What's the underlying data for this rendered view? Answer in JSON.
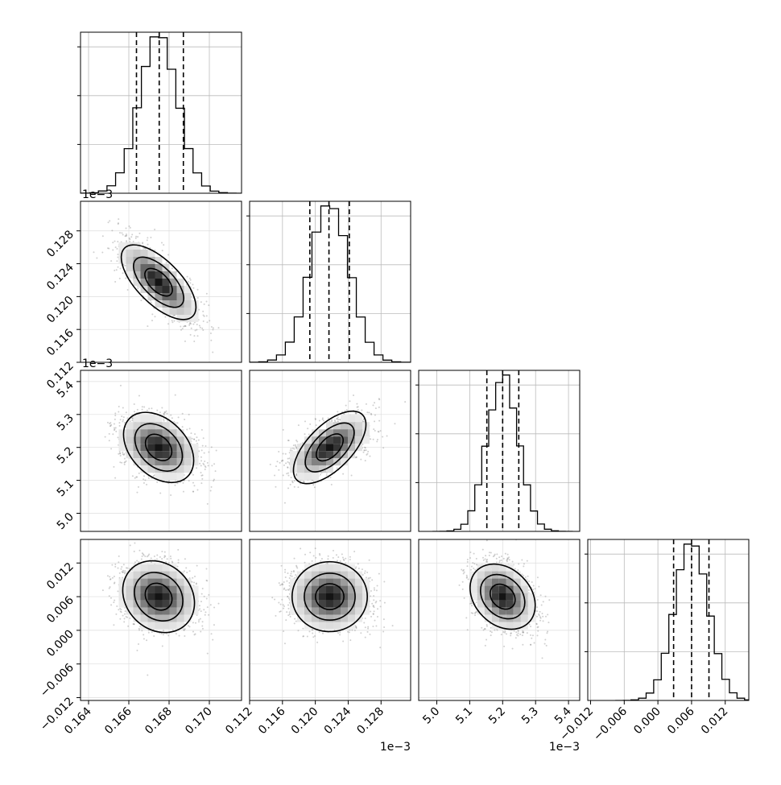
{
  "chart_data": {
    "type": "corner",
    "params": [
      {
        "ticks": [
          "0.164",
          "0.166",
          "0.168",
          "0.170"
        ],
        "tick_values": [
          0.164,
          0.166,
          0.168,
          0.17
        ],
        "range": [
          0.1636,
          0.1716
        ],
        "mean": 0.16748,
        "sd": 0.00095,
        "quantiles": [
          0.16638,
          0.16751,
          0.16871
        ],
        "offset_label": ""
      },
      {
        "ticks": [
          "0.112",
          "0.116",
          "0.120",
          "0.124",
          "0.128"
        ],
        "tick_values": [
          0.112,
          0.116,
          0.12,
          0.124,
          0.128
        ],
        "range": [
          0.112,
          0.1316
        ],
        "mean": 0.12175,
        "sd": 0.0024,
        "quantiles": [
          0.11933,
          0.12166,
          0.12414
        ],
        "offset_label": "1e−3"
      },
      {
        "ticks": [
          "5.0",
          "5.1",
          "5.2",
          "5.3",
          "5.4"
        ],
        "tick_values": [
          5.0,
          5.1,
          5.2,
          5.3,
          5.4
        ],
        "range": [
          4.945,
          5.434
        ],
        "mean": 5.2,
        "sd": 0.047,
        "quantiles": [
          5.152,
          5.2,
          5.249
        ],
        "offset_label": "1e−3"
      },
      {
        "ticks": [
          "−0.012",
          "−0.006",
          "0.000",
          "0.006",
          "0.012"
        ],
        "tick_values": [
          -0.012,
          -0.006,
          0.0,
          0.006,
          0.012
        ],
        "range": [
          -0.0125,
          0.0162
        ],
        "mean": 0.006,
        "sd": 0.003,
        "quantiles": [
          0.0028,
          0.006,
          0.0091
        ],
        "offset_label": ""
      }
    ],
    "correlations": {
      "1-0": -0.75,
      "2-0": -0.3,
      "2-1": 0.6,
      "3-0": -0.15,
      "3-1": 0.0,
      "3-2": -0.3
    },
    "histogram_bins": 20,
    "contour_levels": 3,
    "grid": true
  }
}
